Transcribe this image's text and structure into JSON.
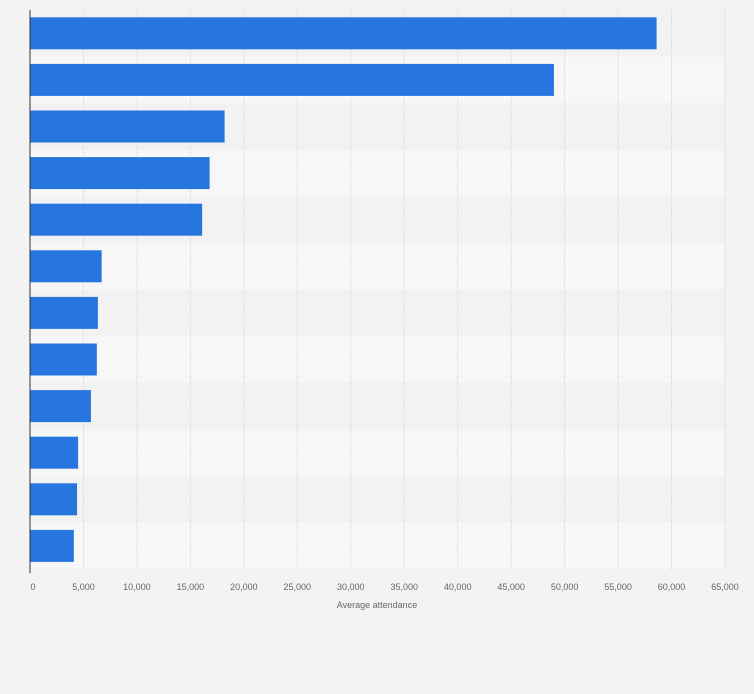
{
  "colors": {
    "background": "#f3f3f3",
    "band_light": "#f7f7f7",
    "band_dark": "#f2f2f2",
    "bar": "#2776e0",
    "grid": "#dcdcdc",
    "axis": "#333333",
    "tick_text": "#666666"
  },
  "chart_data": {
    "type": "bar",
    "orientation": "horizontal",
    "categories": [
      "",
      "",
      "",
      "",
      "",
      "",
      "",
      "",
      "",
      "",
      "",
      ""
    ],
    "values": [
      58600,
      49000,
      18200,
      16800,
      16100,
      6700,
      6350,
      6250,
      5700,
      4500,
      4400,
      4100
    ],
    "xlabel": "Average attendance",
    "ylabel": "",
    "xlim": [
      0,
      65000
    ],
    "x_ticks": [
      0,
      5000,
      10000,
      15000,
      20000,
      25000,
      30000,
      35000,
      40000,
      45000,
      50000,
      55000,
      60000,
      65000
    ],
    "x_tick_labels": [
      "0",
      "5,000",
      "10,000",
      "15,000",
      "20,000",
      "25,000",
      "30,000",
      "35,000",
      "40,000",
      "45,000",
      "50,000",
      "55,000",
      "60,000",
      "65,000"
    ],
    "grid": true,
    "legend": "none"
  }
}
